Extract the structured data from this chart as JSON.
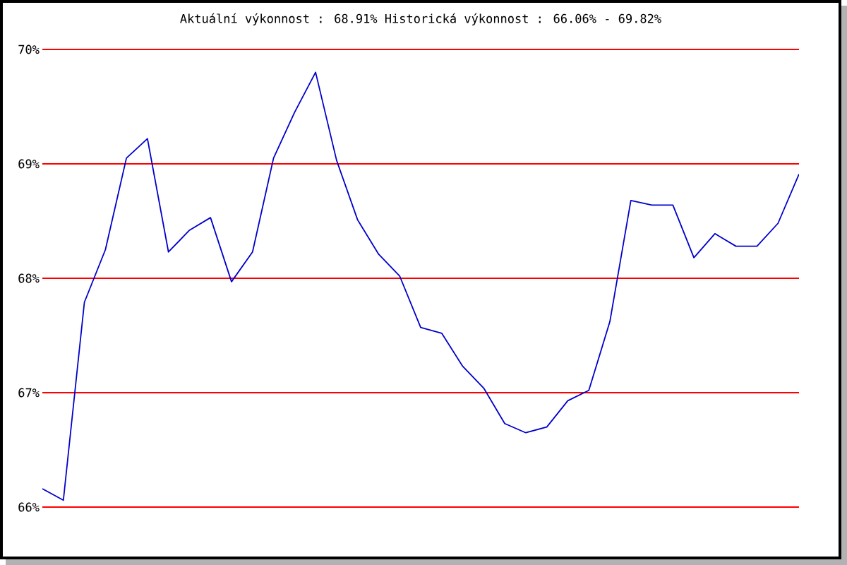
{
  "chart_data": {
    "type": "line",
    "title": "Aktuální výkonnost : 68.91%  Historická výkonnost : 66.06% - 69.82%",
    "categories": [
      null,
      null,
      null,
      null,
      null,
      null,
      null,
      null,
      null,
      null,
      null,
      null,
      null,
      null,
      null,
      null,
      null,
      null,
      null,
      null,
      null,
      null,
      null,
      null,
      null,
      null,
      null,
      null,
      null,
      null,
      null,
      null,
      null,
      null,
      null,
      null,
      null
    ],
    "series": [
      {
        "color": "#0000cc",
        "values": [
          66.16,
          66.06,
          67.79,
          68.25,
          69.05,
          69.22,
          68.23,
          68.42,
          68.53,
          67.97,
          68.23,
          69.05,
          69.45,
          69.8,
          69.03,
          68.51,
          68.21,
          68.02,
          67.57,
          67.52,
          67.23,
          67.04,
          66.73,
          66.65,
          66.7,
          66.93,
          67.02,
          67.62,
          68.68,
          68.64,
          68.64,
          68.18,
          68.39,
          68.28,
          68.28,
          68.48,
          68.91
        ]
      }
    ],
    "ylim": [
      66,
      70
    ],
    "yticks": [
      {
        "value": 66,
        "label": "66%"
      },
      {
        "value": 67,
        "label": "67%"
      },
      {
        "value": 68,
        "label": "68%"
      },
      {
        "value": 69,
        "label": "69%"
      },
      {
        "value": 70,
        "label": "70%"
      }
    ],
    "grid": "y",
    "tick_labels": "y",
    "marker": "none",
    "line_style": "solid"
  }
}
